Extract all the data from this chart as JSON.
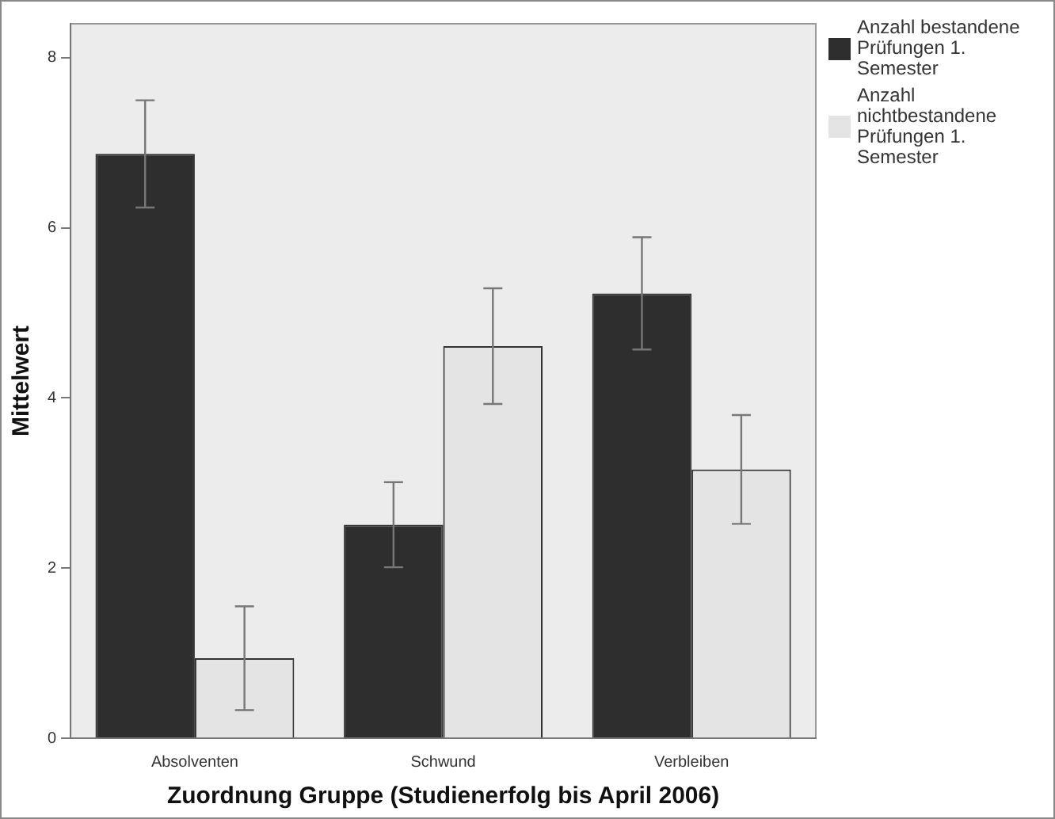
{
  "chart_data": {
    "type": "bar",
    "xlabel": "Zuordnung Gruppe (Studienerfolg bis April 2006)",
    "ylabel": "Mittelwert",
    "categories": [
      "Absolventen",
      "Schwund",
      "Verbleiben"
    ],
    "series": [
      {
        "name": "Anzahl bestandene Prüfungen 1. Semester",
        "color": "#2e2e2e",
        "values": [
          6.87,
          2.51,
          5.23
        ],
        "errors": [
          0.63,
          0.5,
          0.66
        ]
      },
      {
        "name": "Anzahl nichtbestandene Prüfungen 1. Semester",
        "color": "#e4e4e4",
        "values": [
          0.94,
          4.61,
          3.16
        ],
        "errors": [
          0.61,
          0.68,
          0.64
        ]
      }
    ],
    "ylim": [
      0,
      8.4
    ],
    "yticks": [
      0,
      2,
      4,
      6,
      8
    ],
    "grid": false,
    "legend": "top right"
  }
}
